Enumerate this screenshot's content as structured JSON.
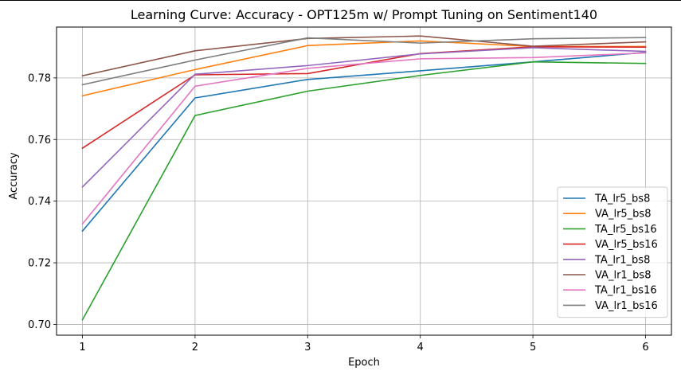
{
  "chart_data": {
    "type": "line",
    "title": "Learning Curve: Accuracy - OPT125m w/ Prompt Tuning on Sentiment140",
    "xlabel": "Epoch",
    "ylabel": "Accuracy",
    "x": [
      1,
      2,
      3,
      4,
      5,
      6
    ],
    "xlim": [
      0.77,
      6.23
    ],
    "ylim": [
      0.6965,
      0.7965
    ],
    "xticks": [
      "1",
      "2",
      "3",
      "4",
      "5",
      "6"
    ],
    "yticks": [
      "0.70",
      "0.72",
      "0.74",
      "0.76",
      "0.78"
    ],
    "grid": true,
    "legend_position": "lower right",
    "series": [
      {
        "name": "TA_lr5_bs8",
        "color": "#1f77b4",
        "values": [
          0.7303,
          0.7735,
          0.7795,
          0.7823,
          0.7852,
          0.7883
        ]
      },
      {
        "name": "VA_lr5_bs8",
        "color": "#ff7f0e",
        "values": [
          0.7742,
          0.7827,
          0.7905,
          0.792,
          0.7902,
          0.7902
        ]
      },
      {
        "name": "TA_lr5_bs16",
        "color": "#2ca02c",
        "values": [
          0.7015,
          0.7678,
          0.7757,
          0.7808,
          0.7852,
          0.7847
        ]
      },
      {
        "name": "VA_lr5_bs16",
        "color": "#d62728",
        "values": [
          0.7572,
          0.781,
          0.7814,
          0.7879,
          0.7901,
          0.79
        ]
      },
      {
        "name": "TA_lr1_bs8",
        "color": "#9467bd",
        "values": [
          0.7446,
          0.7812,
          0.784,
          0.7878,
          0.7898,
          0.7886
        ]
      },
      {
        "name": "VA_lr1_bs8",
        "color": "#8c564b",
        "values": [
          0.7807,
          0.7888,
          0.7928,
          0.7936,
          0.7903,
          0.7917
        ]
      },
      {
        "name": "TA_lr1_bs16",
        "color": "#e377c2",
        "values": [
          0.7326,
          0.7773,
          0.7831,
          0.7862,
          0.7866,
          0.7881
        ]
      },
      {
        "name": "VA_lr1_bs16",
        "color": "#7f7f7f",
        "values": [
          0.7778,
          0.7858,
          0.793,
          0.7913,
          0.7927,
          0.7931
        ]
      }
    ]
  }
}
